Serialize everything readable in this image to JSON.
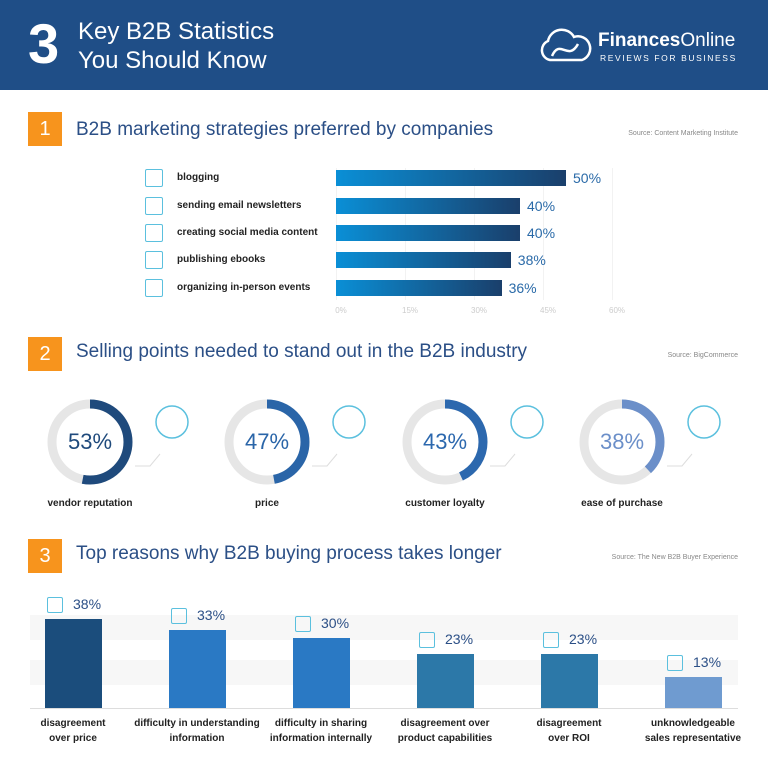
{
  "header": {
    "number": "3",
    "title_line1": "Key B2B Statistics",
    "title_line2": "You Should Know",
    "logo_name_bold": "Finances",
    "logo_name_light": "Online",
    "logo_tagline": "REVIEWS FOR BUSINESS"
  },
  "sections": [
    {
      "number": "1",
      "title": "B2B marketing strategies preferred by companies",
      "source": "Source: Content Marketing Institute"
    },
    {
      "number": "2",
      "title": "Selling points needed to stand out in the B2B industry",
      "source": "Source: BigCommerce"
    },
    {
      "number": "3",
      "title": "Top reasons why B2B buying process takes longer",
      "source": "Source: The New B2B Buyer Experience"
    }
  ],
  "chart_data": [
    {
      "type": "bar",
      "orientation": "horizontal",
      "categories": [
        "blogging",
        "sending email newsletters",
        "creating social media content",
        "publishing ebooks",
        "organizing in-person events"
      ],
      "values": [
        50,
        40,
        40,
        38,
        36
      ],
      "value_labels": [
        "50%",
        "40%",
        "40%",
        "38%",
        "36%"
      ],
      "icons": [
        "blog-icon",
        "email-newsletter-icon",
        "social-media-icon",
        "ebook-icon",
        "event-icon"
      ],
      "xlim": [
        0,
        60
      ],
      "ticks": [
        "0%",
        "15%",
        "30%",
        "45%",
        "60%"
      ],
      "grid": true,
      "bar_gradient": [
        "#0a8fd6",
        "#1a3f6b"
      ]
    },
    {
      "type": "pie",
      "style": "donut",
      "categories": [
        "vendor reputation",
        "price",
        "customer loyalty",
        "ease of purchase"
      ],
      "values": [
        53,
        47,
        43,
        38
      ],
      "value_labels": [
        "53%",
        "47%",
        "43%",
        "38%"
      ],
      "icons": [
        "reputation-search-icon",
        "price-tag-icon",
        "customer-heart-icon",
        "mobile-shopping-icon"
      ],
      "colors": [
        "#1f4a7c",
        "#2a65a8",
        "#2c68ae",
        "#6b8fc9"
      ],
      "track_color": "#e6e6e6"
    },
    {
      "type": "bar",
      "orientation": "vertical",
      "categories": [
        "disagreement over price",
        "difficulty in understanding information",
        "difficulty in sharing information internally",
        "disagreement over product capabilities",
        "disagreement over ROI",
        "unknowledgeable sales representative"
      ],
      "label_lines": [
        [
          "disagreement",
          "over price"
        ],
        [
          "difficulty in understanding",
          "information"
        ],
        [
          "difficulty in sharing",
          "information internally"
        ],
        [
          "disagreement over",
          "product capabilities"
        ],
        [
          "disagreement",
          "over ROI"
        ],
        [
          "unknowledgeable",
          "sales representative"
        ]
      ],
      "values": [
        38,
        33,
        30,
        23,
        23,
        13
      ],
      "value_labels": [
        "38%",
        "33%",
        "30%",
        "23%",
        "23%",
        "13%"
      ],
      "icons": [
        "price-dispute-icon",
        "hourglass-chat-icon",
        "network-share-icon",
        "checklist-icon",
        "coins-icon",
        "sales-rep-icon"
      ],
      "colors": [
        "#1b4d7c",
        "#2a79c4",
        "#2a79c4",
        "#2c78a8",
        "#2c78a8",
        "#6f9bd0"
      ]
    }
  ]
}
